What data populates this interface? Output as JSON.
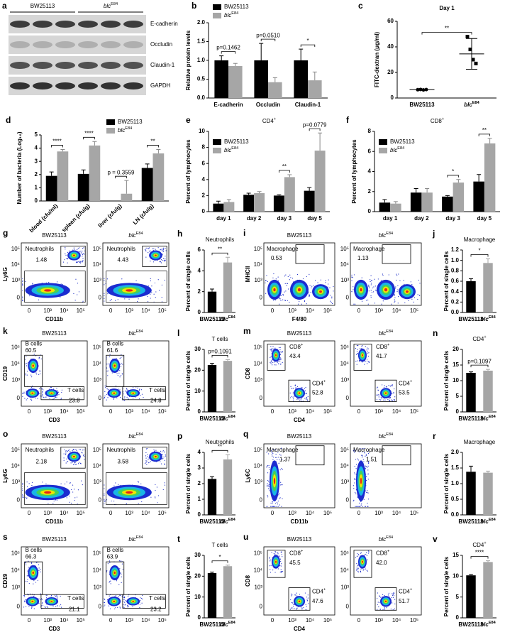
{
  "blot": {
    "panel": "a",
    "samples": [
      "BW25113",
      "blcE84"
    ],
    "bands": [
      "E-cadherin",
      "Occludin",
      "Claudin-1",
      "GAPDH"
    ]
  },
  "chart_data": [
    {
      "type": "bar",
      "panel": "b",
      "y_label": "Relative protein levels",
      "categories": [
        "E-cadherin",
        "Occludin",
        "Claudin-1"
      ],
      "series": [
        {
          "name": "BW25113",
          "color": "#000000",
          "values": [
            1.0,
            1.0,
            1.0
          ],
          "errors": [
            0.12,
            0.45,
            0.3
          ]
        },
        {
          "name": "blcE84",
          "color": "#a6a6a6",
          "values": [
            0.85,
            0.42,
            0.47
          ],
          "errors": [
            0.07,
            0.12,
            0.22
          ]
        }
      ],
      "ylim": [
        0,
        2
      ],
      "yticks": [
        {
          "value": 0,
          "label": "0.0"
        },
        0.5,
        {
          "value": 1,
          "label": "1.0"
        },
        1.5,
        {
          "value": 2,
          "label": "2.0"
        }
      ],
      "annotations": [
        "p=0.1462",
        "p=0.0510",
        "*"
      ]
    },
    {
      "type": "dot",
      "panel": "c",
      "title": "Day 1",
      "y_label": "FITC-dextran (μg/ml)",
      "categories": [
        "BW25113",
        "blcE84"
      ],
      "colors": [
        "#000000",
        "#000000"
      ],
      "values": [
        6.5,
        34.5
      ],
      "errors": [
        0.3,
        12
      ],
      "points": [
        [
          6.5,
          6.7,
          6.3,
          6.6
        ],
        [
          48,
          38,
          30,
          27
        ]
      ],
      "ylim": [
        0,
        60
      ],
      "yticks": [
        0,
        20,
        40,
        60
      ],
      "annotations": [
        "**"
      ]
    },
    {
      "type": "bar",
      "panel": "d",
      "y_label": "Number of bacteria (Log₁₀)",
      "categories": [
        "blood (cfu/ml)",
        "spleen (cfu/g)",
        "liver (cfu/g)",
        "LN (cfu/g)"
      ],
      "series": [
        {
          "name": "BW25113",
          "color": "#000000",
          "values": [
            1.9,
            2.05,
            0,
            2.5
          ],
          "errors": [
            0.3,
            0.3,
            0,
            0.3
          ]
        },
        {
          "name": "blcE84",
          "color": "#a6a6a6",
          "values": [
            3.75,
            4.2,
            0.55,
            3.6
          ],
          "errors": [
            0.15,
            0.3,
            1.0,
            0.3
          ]
        }
      ],
      "ylim": [
        0,
        5
      ],
      "yticks": [
        0,
        1,
        2,
        3,
        4,
        5
      ],
      "annotations": [
        "****",
        "****",
        "p = 0.3559",
        "**"
      ]
    },
    {
      "type": "bar",
      "panel": "e",
      "title": "CD4+",
      "y_label": "Percent of lymphocytes",
      "categories": [
        "day 1",
        "day 2",
        "day 3",
        "day 5"
      ],
      "series": [
        {
          "name": "BW25113",
          "color": "#000000",
          "values": [
            1.0,
            2.1,
            2.0,
            2.6
          ],
          "errors": [
            0.3,
            0.2,
            0.1,
            0.4
          ]
        },
        {
          "name": "blcE84",
          "color": "#a6a6a6",
          "values": [
            1.2,
            2.3,
            4.3,
            7.6
          ],
          "errors": [
            0.3,
            0.2,
            0.3,
            2.2
          ]
        }
      ],
      "ylim": [
        0,
        10
      ],
      "yticks": [
        0,
        2,
        4,
        6,
        8,
        10
      ],
      "annotations": [
        "**",
        "p=0.0779"
      ]
    },
    {
      "type": "bar",
      "panel": "f",
      "title": "CD8+",
      "y_label": "Percent of lymphocytes",
      "categories": [
        "day 1",
        "day 2",
        "day 3",
        "day 5"
      ],
      "series": [
        {
          "name": "BW25113",
          "color": "#000000",
          "values": [
            0.9,
            1.9,
            1.5,
            3.0
          ],
          "errors": [
            0.3,
            0.4,
            0.1,
            0.7
          ]
        },
        {
          "name": "blcE84",
          "color": "#a6a6a6",
          "values": [
            0.8,
            1.9,
            2.9,
            6.8
          ],
          "errors": [
            0.2,
            0.4,
            0.3,
            0.5
          ]
        }
      ],
      "ylim": [
        0,
        8
      ],
      "yticks": [
        0,
        2,
        4,
        6,
        8
      ],
      "annotations": [
        "*",
        "**"
      ]
    },
    {
      "type": "bar",
      "panel": "h",
      "title": "Neutrophils",
      "y_label": "Percent of single cells",
      "categories": [
        "BW25113",
        "blcE84"
      ],
      "colors": [
        "#000000",
        "#a6a6a6"
      ],
      "values": [
        2.0,
        4.8
      ],
      "errors": [
        0.25,
        0.5
      ],
      "ylim": [
        0,
        6
      ],
      "yticks": [
        0,
        2,
        4,
        6
      ],
      "annotations": [
        "**"
      ]
    },
    {
      "type": "bar",
      "panel": "j",
      "title": "Macrophage",
      "y_label": "Percent of single cells",
      "categories": [
        "BW25113",
        "blcE84"
      ],
      "colors": [
        "#000000",
        "#a6a6a6"
      ],
      "values": [
        0.6,
        0.95
      ],
      "errors": [
        0.05,
        0.08
      ],
      "ylim": [
        0,
        1.2
      ],
      "yticks": [
        {
          "value": 0,
          "label": "0.0"
        },
        0.2,
        0.4,
        0.6,
        0.8,
        {
          "value": 1,
          "label": "1.0"
        },
        1.2
      ],
      "annotations": [
        "*"
      ]
    },
    {
      "type": "bar",
      "panel": "l",
      "title": "T cells",
      "y_label": "Percent of single cells",
      "categories": [
        "BW25113",
        "blcE84"
      ],
      "colors": [
        "#000000",
        "#a6a6a6"
      ],
      "values": [
        22.5,
        24.5
      ],
      "errors": [
        0.8,
        0.6
      ],
      "ylim": [
        0,
        30
      ],
      "yticks": [
        0,
        10,
        20,
        30
      ],
      "annotations": [
        "p=0.1091"
      ]
    },
    {
      "type": "bar",
      "panel": "n",
      "title": "CD4+",
      "y_label": "Percent of single cells",
      "categories": [
        "BW25113",
        "blcE84"
      ],
      "colors": [
        "#000000",
        "#a6a6a6"
      ],
      "values": [
        12.5,
        13.2
      ],
      "errors": [
        0.3,
        0.4
      ],
      "ylim": [
        0,
        20
      ],
      "yticks": [
        0,
        5,
        10,
        15,
        20
      ],
      "annotations": [
        "p=0.1097"
      ]
    },
    {
      "type": "bar",
      "panel": "p",
      "title": "Neutrophils",
      "y_label": "Percent of single cells",
      "categories": [
        "BW25113",
        "blcE84"
      ],
      "colors": [
        "#000000",
        "#a6a6a6"
      ],
      "values": [
        2.3,
        3.55
      ],
      "errors": [
        0.15,
        0.3
      ],
      "ylim": [
        0,
        4
      ],
      "yticks": [
        0,
        1,
        2,
        3,
        4
      ],
      "annotations": [
        "**"
      ]
    },
    {
      "type": "bar",
      "panel": "r",
      "title": "Macrophage",
      "y_label": "Percent of single cells",
      "categories": [
        "BW25113",
        "blcE84"
      ],
      "colors": [
        "#000000",
        "#a6a6a6"
      ],
      "values": [
        1.38,
        1.35
      ],
      "errors": [
        0.18,
        0.05
      ],
      "ylim": [
        0,
        2
      ],
      "yticks": [
        {
          "value": 0,
          "label": "0.0"
        },
        0.5,
        {
          "value": 1,
          "label": "1.0"
        },
        1.5,
        {
          "value": 2,
          "label": "2.0"
        }
      ],
      "annotations": []
    },
    {
      "type": "bar",
      "panel": "t",
      "title": "T cells",
      "y_label": "Percent of single cells",
      "categories": [
        "BW25113",
        "blcE84"
      ],
      "colors": [
        "#000000",
        "#a6a6a6"
      ],
      "values": [
        21.5,
        24.8
      ],
      "errors": [
        0.5,
        0.5
      ],
      "ylim": [
        0,
        30
      ],
      "yticks": [
        0,
        10,
        20,
        30
      ],
      "annotations": [
        "*"
      ]
    },
    {
      "type": "bar",
      "panel": "v",
      "title": "CD4+",
      "y_label": "Percent of single cells",
      "categories": [
        "BW25113",
        "blcE84"
      ],
      "colors": [
        "#000000",
        "#a6a6a6"
      ],
      "values": [
        10.2,
        13.4
      ],
      "errors": [
        0.2,
        0.3
      ],
      "ylim": [
        0,
        15
      ],
      "yticks": [
        0,
        5,
        10,
        15
      ],
      "annotations": [
        "****"
      ]
    }
  ],
  "flow_panels": [
    {
      "panel": "g",
      "y_label": "Ly6G",
      "x_label": "CD11b",
      "ticks": [
        "0",
        "10³",
        "10⁴",
        "10⁵"
      ],
      "plots": [
        {
          "sample": "BW25113",
          "gates": [
            {
              "label": "Neutrophils",
              "value": "1.48"
            }
          ]
        },
        {
          "sample": "blcE84",
          "gates": [
            {
              "label": "Neutrophils",
              "value": "4.43"
            }
          ]
        }
      ]
    },
    {
      "panel": "i",
      "y_label": "MHCII",
      "x_label": "F4/80",
      "ticks": [
        "0",
        "10³",
        "10⁴",
        "10⁵"
      ],
      "plots": [
        {
          "sample": "BW25113",
          "gates": [
            {
              "label": "Macrophage",
              "value": "0.53"
            }
          ]
        },
        {
          "sample": "blcE84",
          "gates": [
            {
              "label": "Macrophage",
              "value": "1.13"
            }
          ]
        }
      ]
    },
    {
      "panel": "k",
      "y_label": "CD19",
      "x_label": "CD3",
      "ticks": [
        "0",
        "10³",
        "10⁴",
        "10⁵"
      ],
      "plots": [
        {
          "sample": "BW25113",
          "gates": [
            {
              "label": "B cells",
              "value": "60.5"
            },
            {
              "label": "T cells",
              "value": "23.8"
            }
          ]
        },
        {
          "sample": "blcE84",
          "gates": [
            {
              "label": "B cells",
              "value": "61.6"
            },
            {
              "label": "T cells",
              "value": "24.8"
            }
          ]
        }
      ]
    },
    {
      "panel": "m",
      "y_label": "CD8",
      "x_label": "CD4",
      "ticks": [
        "0",
        "10³",
        "10⁴",
        "10⁵"
      ],
      "plots": [
        {
          "sample": "BW25113",
          "gates": [
            {
              "label": "CD8+",
              "value": "43.4"
            },
            {
              "label": "CD4+",
              "value": "52.8"
            }
          ]
        },
        {
          "sample": "blcE84",
          "gates": [
            {
              "label": "CD8+",
              "value": "41.7"
            },
            {
              "label": "CD4+",
              "value": "53.5"
            }
          ]
        }
      ]
    },
    {
      "panel": "o",
      "y_label": "Ly6G",
      "x_label": "CD11b",
      "ticks": [
        "0",
        "10³",
        "10⁴",
        "10⁵"
      ],
      "plots": [
        {
          "sample": "BW25113",
          "gates": [
            {
              "label": "Neutrophils",
              "value": "2.18"
            }
          ]
        },
        {
          "sample": "blcE84",
          "gates": [
            {
              "label": "Neutrophils",
              "value": "3.58"
            }
          ]
        }
      ]
    },
    {
      "panel": "q",
      "y_label": "Ly6C",
      "x_label": "CD11b",
      "ticks": [
        "0",
        "10³",
        "10⁴",
        "10⁵"
      ],
      "plots": [
        {
          "sample": "BW25113",
          "gates": [
            {
              "label": "Macrophage",
              "value": "1.37"
            }
          ]
        },
        {
          "sample": "blcE84",
          "gates": [
            {
              "label": "Macrophage",
              "value": "1.51"
            }
          ]
        }
      ]
    },
    {
      "panel": "s",
      "y_label": "CD19",
      "x_label": "CD3",
      "ticks": [
        "0",
        "10³",
        "10⁴",
        "10⁵"
      ],
      "plots": [
        {
          "sample": "BW25113",
          "gates": [
            {
              "label": "B cells",
              "value": "66.3"
            },
            {
              "label": "T cells",
              "value": "21.1"
            }
          ]
        },
        {
          "sample": "blcE84",
          "gates": [
            {
              "label": "B cells",
              "value": "63.9"
            },
            {
              "label": "T cells",
              "value": "23.2"
            }
          ]
        }
      ]
    },
    {
      "panel": "u",
      "y_label": "CD8",
      "x_label": "CD4",
      "ticks": [
        "0",
        "10³",
        "10⁴",
        "10⁵"
      ],
      "plots": [
        {
          "sample": "BW25113",
          "gates": [
            {
              "label": "CD8+",
              "value": "45.5"
            },
            {
              "label": "CD4+",
              "value": "47.6"
            }
          ]
        },
        {
          "sample": "blcE84",
          "gates": [
            {
              "label": "CD8+",
              "value": "42.0"
            },
            {
              "label": "CD4+",
              "value": "51.7"
            }
          ]
        }
      ]
    }
  ]
}
